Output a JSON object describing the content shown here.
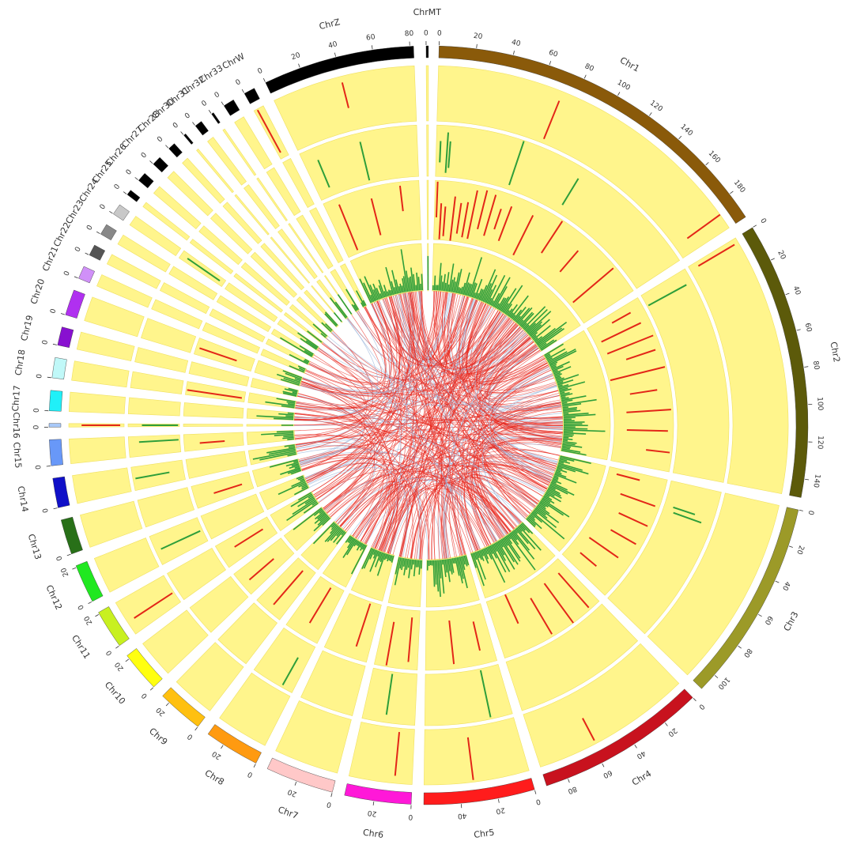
{
  "chart_data": {
    "type": "circos",
    "title": "",
    "colors": {
      "track_background": "#fff58c",
      "track_border": "#f0e060",
      "red_marks": "#e32618",
      "green_marks": "#2e9e3a",
      "links_red": "#e8281e",
      "links_blue": "#9db8dc"
    },
    "chromosomes": [
      {
        "name": "Chr1",
        "length": 195,
        "color": "#8a5a0a",
        "ticks": [
          0,
          20,
          40,
          60,
          80,
          100,
          120,
          140,
          160,
          180
        ]
      },
      {
        "name": "Chr2",
        "length": 150,
        "color": "#5c5a0a",
        "ticks": [
          0,
          20,
          40,
          60,
          80,
          100,
          120,
          140
        ]
      },
      {
        "name": "Chr3",
        "length": 110,
        "color": "#9c9a28",
        "ticks": [
          0,
          20,
          40,
          60,
          80,
          100
        ]
      },
      {
        "name": "Chr4",
        "length": 92,
        "color": "#c8121e",
        "ticks": [
          0,
          20,
          40,
          60,
          80
        ]
      },
      {
        "name": "Chr5",
        "length": 60,
        "color": "#ff1c1c",
        "ticks": [
          0,
          20,
          40
        ]
      },
      {
        "name": "Chr6",
        "length": 36,
        "color": "#ff18d8",
        "ticks": [
          0,
          20
        ]
      },
      {
        "name": "Chr7",
        "length": 37,
        "color": "#ffc8c8",
        "ticks": [
          0,
          20
        ]
      },
      {
        "name": "Chr8",
        "length": 30,
        "color": "#ff9a10",
        "ticks": [
          0,
          20
        ]
      },
      {
        "name": "Chr9",
        "length": 25,
        "color": "#ffc010",
        "ticks": [
          0,
          20
        ]
      },
      {
        "name": "Chr10",
        "length": 22,
        "color": "#ffff10",
        "ticks": [
          0,
          20
        ]
      },
      {
        "name": "Chr11",
        "length": 21,
        "color": "#c8f020",
        "ticks": [
          0,
          20
        ]
      },
      {
        "name": "Chr12",
        "length": 21,
        "color": "#20e820",
        "ticks": [
          0,
          20
        ]
      },
      {
        "name": "Chr13",
        "length": 19,
        "color": "#287018",
        "ticks": [
          0
        ]
      },
      {
        "name": "Chr14",
        "length": 16,
        "color": "#1010c8",
        "ticks": [
          0
        ]
      },
      {
        "name": "Chr15",
        "length": 14,
        "color": "#6898f8",
        "ticks": [
          0
        ]
      },
      {
        "name": "Chr16",
        "length": 2,
        "color": "#a8c8f8",
        "ticks": [
          0
        ]
      },
      {
        "name": "Chr17",
        "length": 11,
        "color": "#20f0f8",
        "ticks": [
          0
        ]
      },
      {
        "name": "Chr18",
        "length": 11,
        "color": "#c0f8f8",
        "ticks": [
          0
        ]
      },
      {
        "name": "Chr19",
        "length": 10,
        "color": "#8810d0",
        "ticks": [
          0
        ]
      },
      {
        "name": "Chr20",
        "length": 14,
        "color": "#b030f0",
        "ticks": [
          0
        ]
      },
      {
        "name": "Chr21",
        "length": 7,
        "color": "#d090f8",
        "ticks": [
          0
        ]
      },
      {
        "name": "Chr22",
        "length": 6,
        "color": "#555555",
        "ticks": [
          0
        ]
      },
      {
        "name": "Chr23",
        "length": 6,
        "color": "#888888",
        "ticks": [
          0
        ]
      },
      {
        "name": "Chr24",
        "length": 6,
        "color": "#c8c8c8",
        "ticks": [
          0
        ]
      },
      {
        "name": "Chr25",
        "length": 3,
        "color": "#000000",
        "ticks": [
          0
        ]
      },
      {
        "name": "Chr26",
        "length": 5,
        "color": "#000000",
        "ticks": [
          0
        ]
      },
      {
        "name": "Chr27",
        "length": 5,
        "color": "#000000",
        "ticks": [
          0
        ]
      },
      {
        "name": "Chr28",
        "length": 4,
        "color": "#000000",
        "ticks": [
          0
        ]
      },
      {
        "name": "Chr30",
        "length": 1,
        "color": "#000000",
        "ticks": [
          0
        ]
      },
      {
        "name": "Chr31",
        "length": 4,
        "color": "#000000",
        "ticks": [
          0
        ]
      },
      {
        "name": "Chr32",
        "length": 1.2,
        "color": "#000000",
        "ticks": [
          0
        ]
      },
      {
        "name": "Chr33",
        "length": 6,
        "color": "#000000",
        "ticks": [
          0
        ]
      },
      {
        "name": "ChrW",
        "length": 6,
        "color": "#000000",
        "ticks": [
          0
        ]
      },
      {
        "name": "ChrZ",
        "length": 82,
        "color": "#000000",
        "ticks": [
          0,
          20,
          40,
          60,
          80
        ]
      },
      {
        "name": "ChrMT",
        "length": 0.5,
        "color": "#000000",
        "ticks": [
          0
        ]
      }
    ],
    "tracks": [
      {
        "name": "",
        "style": "tile",
        "color": "red",
        "features": [
          {
            "chr": "Chr1",
            "pos": 72
          },
          {
            "chr": "Chr1",
            "pos": 186
          },
          {
            "chr": "Chr2",
            "pos": 3
          },
          {
            "chr": "Chr4",
            "pos": 58
          },
          {
            "chr": "Chr5",
            "pos": 32
          },
          {
            "chr": "Chr6",
            "pos": 10
          },
          {
            "chr": "Chr11",
            "pos": 8
          },
          {
            "chr": "Chr16",
            "pos": 1
          },
          {
            "chr": "ChrZ",
            "pos": 40
          },
          {
            "chr": "ChrW",
            "pos": 2
          }
        ]
      },
      {
        "name": "",
        "style": "tile",
        "color": "green",
        "features": [
          {
            "chr": "Chr1",
            "pos": 3
          },
          {
            "chr": "Chr1",
            "pos": 8
          },
          {
            "chr": "Chr1",
            "pos": 10
          },
          {
            "chr": "Chr1",
            "pos": 60
          },
          {
            "chr": "Chr1",
            "pos": 105
          },
          {
            "chr": "Chr2",
            "pos": 10
          },
          {
            "chr": "Chr3",
            "pos": 20
          },
          {
            "chr": "Chr3",
            "pos": 24
          },
          {
            "chr": "Chr5",
            "pos": 15
          },
          {
            "chr": "Chr6",
            "pos": 20
          },
          {
            "chr": "Chr8",
            "pos": 8
          },
          {
            "chr": "Chr12",
            "pos": 10
          },
          {
            "chr": "Chr14",
            "pos": 8
          },
          {
            "chr": "Chr15",
            "pos": 10
          },
          {
            "chr": "Chr16",
            "pos": 1
          },
          {
            "chr": "Chr24",
            "pos": 3
          },
          {
            "chr": "ChrZ",
            "pos": 42
          },
          {
            "chr": "ChrZ",
            "pos": 10
          }
        ]
      },
      {
        "name": "",
        "style": "tile",
        "color": "red",
        "features": [
          {
            "chr": "Chr1",
            "pos": 2
          },
          {
            "chr": "Chr1",
            "pos": 6
          },
          {
            "chr": "Chr1",
            "pos": 10
          },
          {
            "chr": "Chr1",
            "pos": 18
          },
          {
            "chr": "Chr1",
            "pos": 24
          },
          {
            "chr": "Chr1",
            "pos": 30
          },
          {
            "chr": "Chr1",
            "pos": 36
          },
          {
            "chr": "Chr1",
            "pos": 44
          },
          {
            "chr": "Chr1",
            "pos": 52
          },
          {
            "chr": "Chr1",
            "pos": 60
          },
          {
            "chr": "Chr1",
            "pos": 68
          },
          {
            "chr": "Chr1",
            "pos": 88
          },
          {
            "chr": "Chr1",
            "pos": 112
          },
          {
            "chr": "Chr1",
            "pos": 138
          },
          {
            "chr": "Chr1",
            "pos": 170
          },
          {
            "chr": "Chr2",
            "pos": 8
          },
          {
            "chr": "Chr2",
            "pos": 20
          },
          {
            "chr": "Chr2",
            "pos": 34
          },
          {
            "chr": "Chr2",
            "pos": 46
          },
          {
            "chr": "Chr2",
            "pos": 62
          },
          {
            "chr": "Chr2",
            "pos": 80
          },
          {
            "chr": "Chr2",
            "pos": 98
          },
          {
            "chr": "Chr2",
            "pos": 116
          },
          {
            "chr": "Chr2",
            "pos": 134
          },
          {
            "chr": "Chr3",
            "pos": 6
          },
          {
            "chr": "Chr3",
            "pos": 24
          },
          {
            "chr": "Chr3",
            "pos": 42
          },
          {
            "chr": "Chr3",
            "pos": 60
          },
          {
            "chr": "Chr3",
            "pos": 78
          },
          {
            "chr": "Chr3",
            "pos": 96
          },
          {
            "chr": "Chr4",
            "pos": 10
          },
          {
            "chr": "Chr4",
            "pos": 28
          },
          {
            "chr": "Chr4",
            "pos": 48
          },
          {
            "chr": "Chr4",
            "pos": 70
          },
          {
            "chr": "Chr5",
            "pos": 12
          },
          {
            "chr": "Chr5",
            "pos": 36
          },
          {
            "chr": "Chr6",
            "pos": 8
          },
          {
            "chr": "Chr6",
            "pos": 26
          },
          {
            "chr": "Chr7",
            "pos": 12
          },
          {
            "chr": "Chr8",
            "pos": 14
          },
          {
            "chr": "Chr9",
            "pos": 12
          },
          {
            "chr": "Chr10",
            "pos": 10
          },
          {
            "chr": "Chr11",
            "pos": 12
          },
          {
            "chr": "Chr13",
            "pos": 8
          },
          {
            "chr": "Chr15",
            "pos": 6
          },
          {
            "chr": "Chr18",
            "pos": 4
          },
          {
            "chr": "Chr20",
            "pos": 6
          },
          {
            "chr": "ChrZ",
            "pos": 12
          },
          {
            "chr": "ChrZ",
            "pos": 40
          },
          {
            "chr": "ChrZ",
            "pos": 66
          }
        ]
      },
      {
        "name": "",
        "style": "histogram",
        "color": "green",
        "bins": 60
      }
    ],
    "links": {
      "count": 420,
      "colors": [
        "red",
        "blue"
      ]
    }
  }
}
